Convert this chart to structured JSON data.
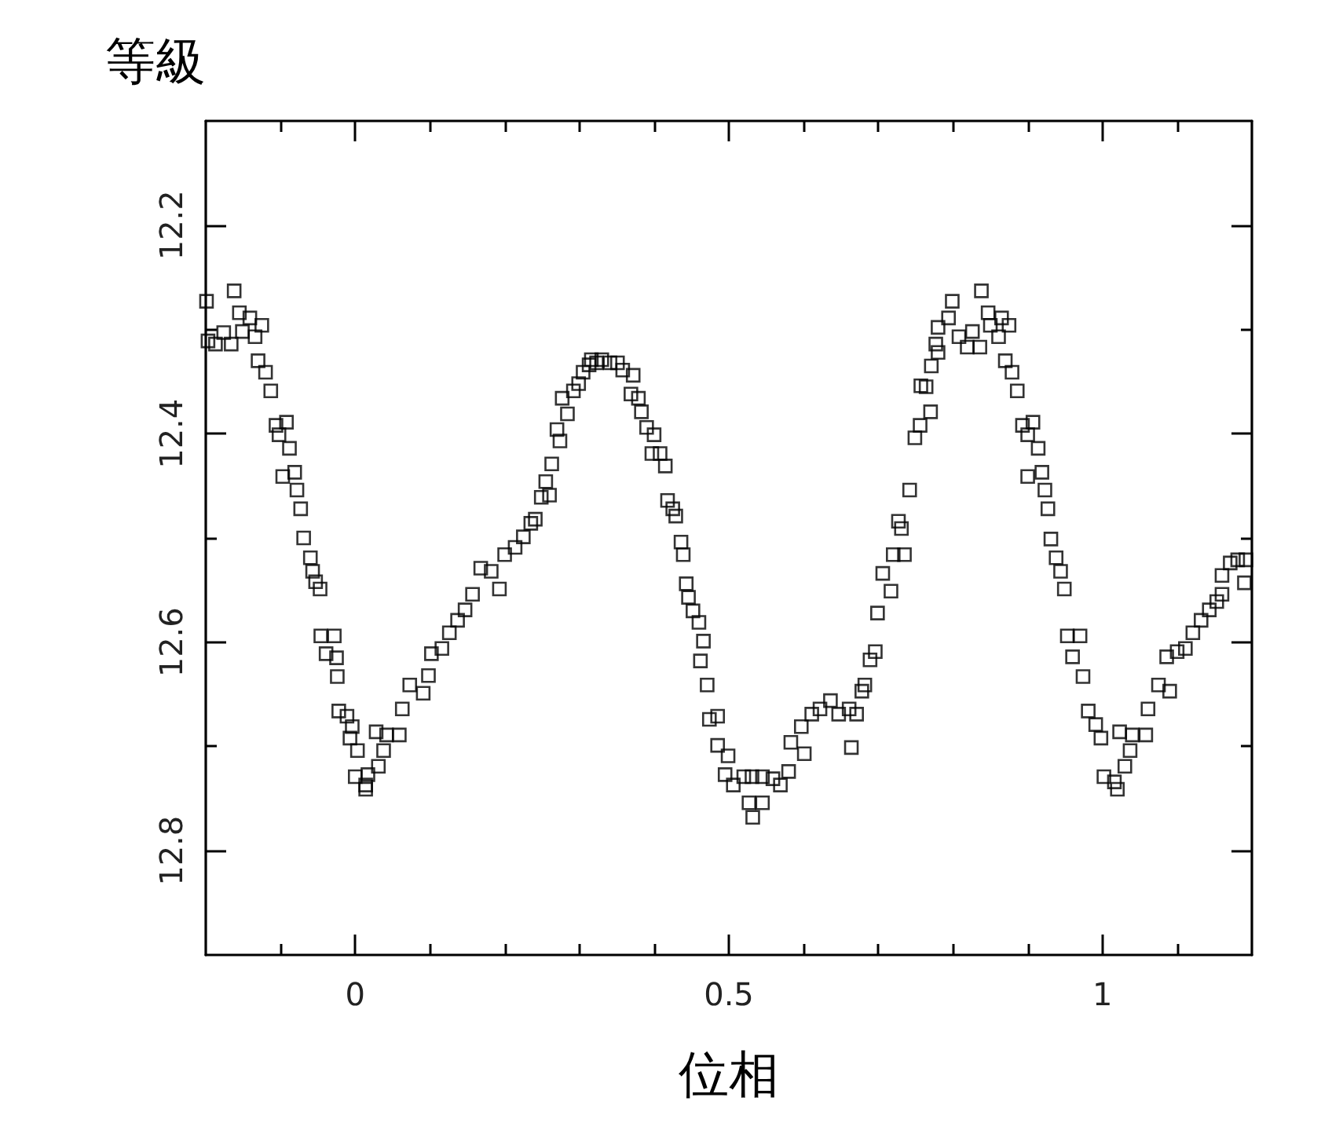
{
  "chart_data": {
    "type": "scatter",
    "xlabel": "位相",
    "ylabel": "等級",
    "marker": "square",
    "color": "#000000",
    "xlim": [
      -0.2,
      1.2
    ],
    "ylim": [
      12.9,
      12.1
    ],
    "xticks": [
      {
        "value": -0.1,
        "label": null
      },
      0,
      {
        "value": 0.1,
        "label": null
      },
      {
        "value": 0.2,
        "label": null
      },
      {
        "value": 0.3,
        "label": null
      },
      {
        "value": 0.4,
        "label": null
      },
      0.5,
      {
        "value": 0.6,
        "label": null
      },
      {
        "value": 0.7,
        "label": null
      },
      {
        "value": 0.8,
        "label": null
      },
      {
        "value": 0.9,
        "label": null
      },
      1,
      {
        "value": 1.1,
        "label": null
      }
    ],
    "yticks": [
      12.2,
      {
        "value": 12.3,
        "label": null
      },
      12.4,
      {
        "value": 12.5,
        "label": null
      },
      12.6,
      {
        "value": 12.7,
        "label": null
      },
      12.8
    ],
    "x": [
      -0.199,
      -0.162,
      -0.197,
      -0.187,
      -0.176,
      -0.166,
      -0.155,
      -0.151,
      -0.141,
      -0.134,
      -0.125,
      -0.13,
      -0.12,
      -0.113,
      -0.106,
      -0.092,
      -0.102,
      -0.088,
      -0.097,
      -0.081,
      -0.078,
      -0.073,
      -0.069,
      -0.06,
      -0.057,
      -0.053,
      -0.047,
      -0.046,
      -0.028,
      -0.039,
      -0.025,
      -0.024,
      -0.022,
      -0.011,
      -0.004,
      -0.007,
      0.003,
      0.028,
      0.042,
      0.059,
      0.038,
      0.0,
      0.014,
      0.017,
      0.031,
      0.014,
      0.063,
      0.073,
      0.091,
      0.098,
      0.102,
      0.116,
      0.126,
      0.137,
      0.147,
      0.157,
      0.168,
      0.182,
      0.193,
      0.2,
      0.214,
      0.225,
      0.235,
      0.241,
      0.249,
      0.255,
      0.263,
      0.26,
      0.27,
      0.274,
      0.277,
      0.284,
      0.292,
      0.299,
      0.305,
      0.313,
      0.316,
      0.323,
      0.33,
      0.341,
      0.351,
      0.358,
      0.372,
      0.369,
      0.379,
      0.383,
      0.39,
      0.4,
      0.397,
      0.408,
      0.415,
      0.418,
      0.425,
      0.429,
      0.436,
      0.439,
      0.443,
      0.446,
      0.452,
      0.46,
      0.466,
      0.462,
      0.471,
      0.474,
      0.485,
      0.485,
      0.499,
      0.495,
      0.506,
      0.52,
      0.531,
      0.545,
      0.527,
      0.532,
      0.545,
      0.559,
      0.569,
      0.58,
      0.583,
      0.601,
      0.597,
      0.611,
      0.622,
      0.636,
      0.647,
      0.661,
      0.664,
      0.671,
      0.678,
      0.682,
      0.689,
      0.696,
      0.699,
      0.706,
      0.717,
      0.72,
      0.735,
      0.727,
      0.731,
      0.742,
      0.749,
      0.756,
      0.757,
      0.764,
      0.77,
      0.771,
      0.78,
      0.777,
      0.78,
      0.794,
      0.799,
      0.808,
      0.819,
      0.826,
      0.836,
      0.838,
      0.847,
      0.85,
      0.861,
      0.865,
      0.875,
      0.87,
      0.879,
      0.886,
      0.893,
      0.907,
      0.9,
      0.914,
      0.9,
      0.919,
      0.923,
      0.927,
      0.931,
      0.938,
      0.944,
      0.949,
      0.953,
      0.97,
      0.96,
      0.974,
      0.981,
      0.991,
      0.998,
      1.023,
      1.04,
      1.058,
      1.002,
      1.016,
      1.02,
      1.03,
      1.037,
      1.061,
      1.075,
      1.09,
      1.086,
      1.1,
      1.111,
      1.121,
      1.132,
      1.143,
      1.153,
      1.16,
      1.16,
      1.171,
      1.181,
      1.192,
      1.19
    ],
    "values": [
      12.273,
      12.263,
      12.311,
      12.314,
      12.303,
      12.314,
      12.284,
      12.302,
      12.289,
      12.307,
      12.296,
      12.33,
      12.341,
      12.359,
      12.392,
      12.389,
      12.401,
      12.414,
      12.441,
      12.437,
      12.454,
      12.472,
      12.5,
      12.519,
      12.532,
      12.542,
      12.549,
      12.594,
      12.594,
      12.611,
      12.615,
      12.633,
      12.666,
      12.671,
      12.681,
      12.692,
      12.704,
      12.686,
      12.689,
      12.689,
      12.704,
      12.729,
      12.737,
      12.727,
      12.719,
      12.741,
      12.664,
      12.641,
      12.649,
      12.632,
      12.611,
      12.606,
      12.591,
      12.579,
      12.569,
      12.554,
      12.529,
      12.532,
      12.549,
      12.516,
      12.509,
      12.499,
      12.486,
      12.482,
      12.461,
      12.446,
      12.429,
      12.459,
      12.396,
      12.407,
      12.366,
      12.381,
      12.359,
      12.352,
      12.341,
      12.334,
      12.329,
      12.332,
      12.329,
      12.332,
      12.332,
      12.339,
      12.344,
      12.362,
      12.366,
      12.379,
      12.394,
      12.401,
      12.419,
      12.419,
      12.431,
      12.464,
      12.472,
      12.479,
      12.504,
      12.516,
      12.544,
      12.557,
      12.57,
      12.581,
      12.599,
      12.618,
      12.641,
      12.674,
      12.671,
      12.699,
      12.709,
      12.727,
      12.737,
      12.729,
      12.729,
      12.729,
      12.754,
      12.768,
      12.754,
      12.731,
      12.737,
      12.724,
      12.696,
      12.707,
      12.681,
      12.669,
      12.664,
      12.656,
      12.669,
      12.664,
      12.701,
      12.669,
      12.647,
      12.641,
      12.617,
      12.609,
      12.572,
      12.534,
      12.551,
      12.516,
      12.516,
      12.484,
      12.491,
      12.454,
      12.404,
      12.392,
      12.354,
      12.355,
      12.379,
      12.335,
      12.322,
      12.314,
      12.298,
      12.289,
      12.273,
      12.307,
      12.317,
      12.302,
      12.317,
      12.263,
      12.284,
      12.296,
      12.307,
      12.289,
      12.296,
      12.33,
      12.341,
      12.359,
      12.392,
      12.389,
      12.401,
      12.414,
      12.441,
      12.437,
      12.454,
      12.472,
      12.501,
      12.519,
      12.532,
      12.549,
      12.594,
      12.594,
      12.614,
      12.633,
      12.666,
      12.679,
      12.692,
      12.686,
      12.689,
      12.689,
      12.729,
      12.734,
      12.741,
      12.719,
      12.704,
      12.664,
      12.641,
      12.647,
      12.614,
      12.609,
      12.606,
      12.591,
      12.579,
      12.569,
      12.561,
      12.554,
      12.536,
      12.524,
      12.521,
      12.521,
      12.543
    ]
  }
}
